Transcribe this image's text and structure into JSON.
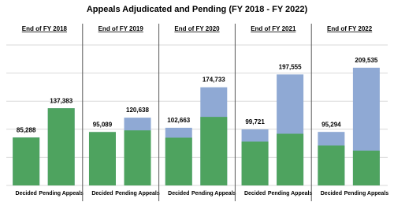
{
  "chart_data": {
    "type": "bar",
    "title": "Appeals Adjudicated and Pending (FY 2018 - FY 2022)",
    "ylim": [
      0,
      250000
    ],
    "yticks": [
      50000,
      100000,
      150000,
      200000,
      250000
    ],
    "grid": true,
    "total_color": "#8fa9d4",
    "base_color": "#4ea35f",
    "panels": [
      {
        "title": "End of FY 2018",
        "categories": [
          "Decided",
          "Pending Appeals"
        ],
        "values": [
          85288,
          137383
        ],
        "value_labels": [
          "85,288",
          "137,383"
        ],
        "base_values": [
          85288,
          137383
        ]
      },
      {
        "title": "End of FY 2019",
        "categories": [
          "Decided",
          "Pending Appeals"
        ],
        "values": [
          95089,
          120638
        ],
        "value_labels": [
          "95,089",
          "120,638"
        ],
        "base_values": [
          95089,
          98000
        ]
      },
      {
        "title": "End of FY 2020",
        "categories": [
          "Decided",
          "Pending Appeals"
        ],
        "values": [
          102663,
          174733
        ],
        "value_labels": [
          "102,663",
          "174,733"
        ],
        "base_values": [
          85000,
          122000
        ]
      },
      {
        "title": "End of FY 2021",
        "categories": [
          "Decided",
          "Pending Appeals"
        ],
        "values": [
          99721,
          197555
        ],
        "value_labels": [
          "99,721",
          "197,555"
        ],
        "base_values": [
          78000,
          92000
        ]
      },
      {
        "title": "End of FY 2022",
        "categories": [
          "Decided",
          "Pending Appeals"
        ],
        "values": [
          95294,
          209535
        ],
        "value_labels": [
          "95,294",
          "209,535"
        ],
        "base_values": [
          71000,
          62000
        ]
      }
    ]
  }
}
